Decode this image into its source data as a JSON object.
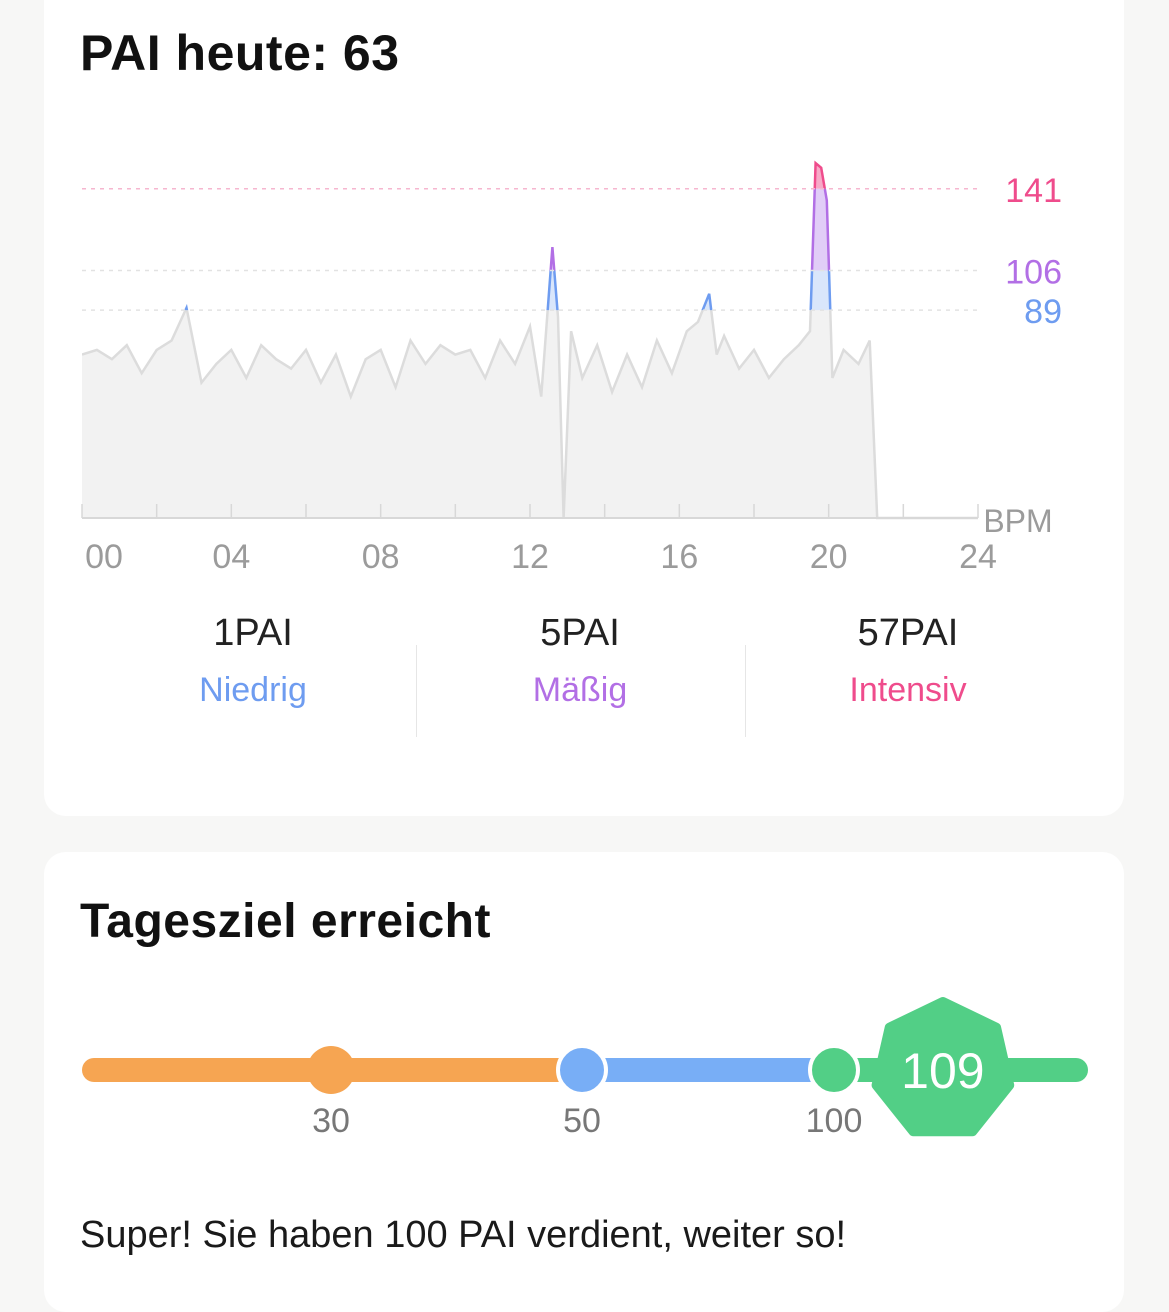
{
  "pai_card": {
    "title": "PAI heute: 63",
    "chart_data": {
      "type": "area",
      "x_range": [
        0,
        24
      ],
      "x_ticks": [
        "00",
        "04",
        "08",
        "12",
        "16",
        "20",
        "24"
      ],
      "unit_label": "BPM",
      "thresholds": [
        {
          "value": 141,
          "label": "141",
          "color": "#ef4c8c"
        },
        {
          "value": 106,
          "label": "106",
          "color": "#b26fe5"
        },
        {
          "value": 89,
          "label": "89",
          "color": "#6e9cf0"
        }
      ],
      "series": {
        "x": [
          0,
          0.4,
          0.8,
          1.2,
          1.6,
          2.0,
          2.4,
          2.8,
          3.0,
          3.2,
          3.6,
          4.0,
          4.4,
          4.8,
          5.2,
          5.6,
          6.0,
          6.4,
          6.8,
          7.2,
          7.6,
          8.0,
          8.4,
          8.8,
          9.2,
          9.6,
          10.0,
          10.4,
          10.8,
          11.2,
          11.6,
          12.0,
          12.3,
          12.6,
          12.75,
          12.9,
          13.1,
          13.4,
          13.8,
          14.2,
          14.6,
          15.0,
          15.4,
          15.8,
          16.2,
          16.5,
          16.8,
          17.0,
          17.2,
          17.6,
          18.0,
          18.4,
          18.8,
          19.2,
          19.5,
          19.65,
          19.8,
          19.95,
          20.1,
          20.4,
          20.8,
          21.1,
          21.3,
          21.6,
          22.0,
          24.0
        ],
        "bpm": [
          70,
          72,
          68,
          74,
          62,
          72,
          76,
          90,
          74,
          58,
          66,
          72,
          60,
          74,
          68,
          64,
          72,
          58,
          70,
          52,
          68,
          72,
          56,
          76,
          66,
          74,
          70,
          72,
          60,
          76,
          66,
          82,
          52,
          116,
          86,
          0,
          80,
          60,
          74,
          54,
          70,
          56,
          76,
          62,
          80,
          84,
          96,
          70,
          78,
          64,
          72,
          60,
          68,
          74,
          80,
          152,
          150,
          136,
          60,
          72,
          66,
          76,
          0,
          0,
          0,
          0
        ]
      }
    },
    "stats": [
      {
        "value": "1PAI",
        "label": "Niedrig",
        "color": "#6e9cf0"
      },
      {
        "value": "5PAI",
        "label": "Mäßig",
        "color": "#b26fe5"
      },
      {
        "value": "57PAI",
        "label": "Intensiv",
        "color": "#ef4c8c"
      }
    ]
  },
  "goal_card": {
    "title": "Tagesziel erreicht",
    "progress": {
      "current": 109,
      "current_label": "109",
      "max": 120,
      "milestones": [
        {
          "value": 30,
          "label": "30",
          "color": "#f6a552"
        },
        {
          "value": 50,
          "label": "50",
          "color": "#78aef6"
        },
        {
          "value": 100,
          "label": "100",
          "color": "#52cf86"
        }
      ]
    },
    "message": "Super! Sie haben 100 PAI verdient, weiter so!"
  }
}
